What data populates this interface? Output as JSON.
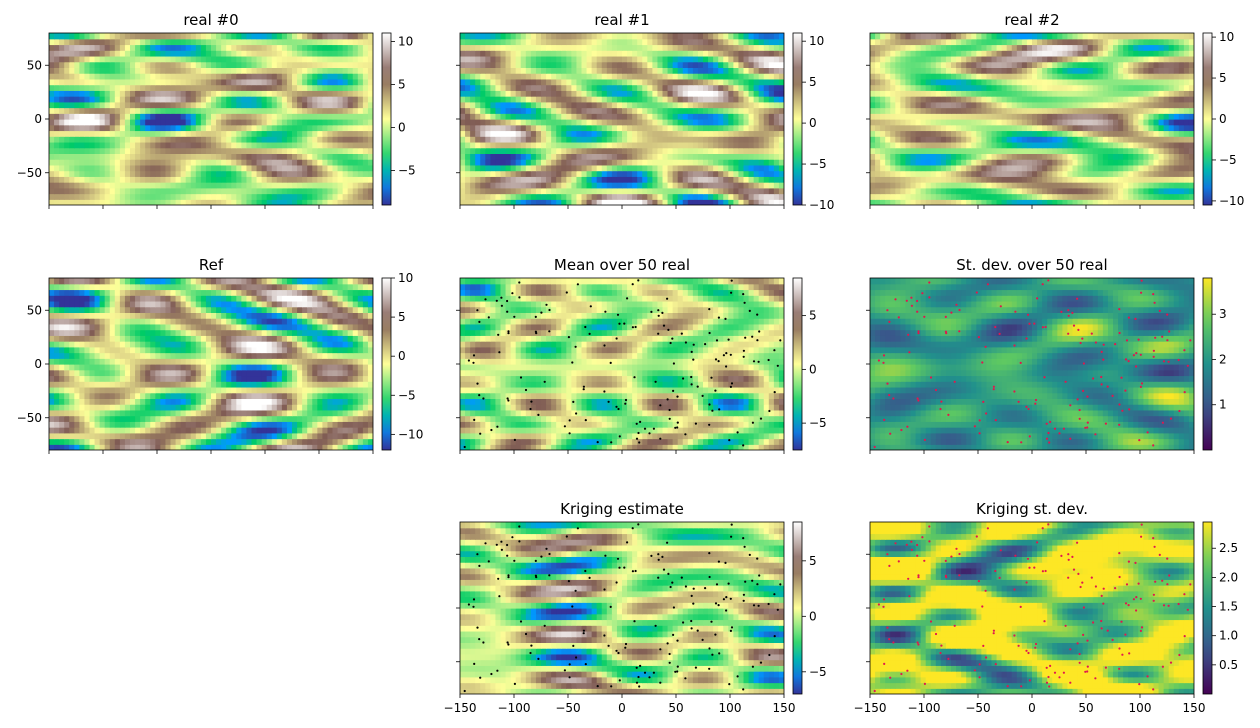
{
  "chart_data": [
    {
      "type": "heatmap",
      "title": "real #0",
      "colormap": "terrain",
      "xlim": [
        -150,
        150
      ],
      "ylim": [
        -80,
        80
      ],
      "yticks": [
        50,
        0,
        -50
      ],
      "ytick_labels": [
        "50",
        "0",
        "−50"
      ],
      "xticks": [
        -150,
        -100,
        -50,
        0,
        50,
        100,
        150
      ],
      "xtick_labels": [],
      "colorbar": {
        "min": -9,
        "max": 11,
        "ticks": [
          10,
          5,
          0,
          -5
        ],
        "tick_labels": [
          "10",
          "5",
          "0",
          "−5"
        ]
      },
      "points": []
    },
    {
      "type": "heatmap",
      "title": "real #1",
      "colormap": "terrain",
      "xlim": [
        -150,
        150
      ],
      "ylim": [
        -80,
        80
      ],
      "yticks": [
        50,
        0,
        -50
      ],
      "ytick_labels": [],
      "xticks": [
        -150,
        -100,
        -50,
        0,
        50,
        100,
        150
      ],
      "xtick_labels": [],
      "colorbar": {
        "min": -10,
        "max": 11,
        "ticks": [
          10,
          5,
          0,
          -5,
          -10
        ],
        "tick_labels": [
          "10",
          "5",
          "0",
          "−5",
          "−10"
        ]
      },
      "points": []
    },
    {
      "type": "heatmap",
      "title": "real #2",
      "colormap": "terrain",
      "xlim": [
        -150,
        150
      ],
      "ylim": [
        -80,
        80
      ],
      "yticks": [
        50,
        0,
        -50
      ],
      "ytick_labels": [],
      "xticks": [
        -150,
        -100,
        -50,
        0,
        50,
        100,
        150
      ],
      "xtick_labels": [],
      "colorbar": {
        "min": -10.5,
        "max": 10.5,
        "ticks": [
          10,
          5,
          0,
          -5,
          -10
        ],
        "tick_labels": [
          "10",
          "5",
          "0",
          "−5",
          "−10"
        ]
      },
      "points": []
    },
    {
      "type": "heatmap",
      "title": "Ref",
      "colormap": "terrain",
      "xlim": [
        -150,
        150
      ],
      "ylim": [
        -80,
        80
      ],
      "yticks": [
        50,
        0,
        -50
      ],
      "ytick_labels": [
        "50",
        "0",
        "−50"
      ],
      "xticks": [
        -150,
        -100,
        -50,
        0,
        50,
        100,
        150
      ],
      "xtick_labels": [],
      "colorbar": {
        "min": -12,
        "max": 10,
        "ticks": [
          10,
          5,
          0,
          -5,
          -10
        ],
        "tick_labels": [
          "10",
          "5",
          "0",
          "−5",
          "−10"
        ]
      },
      "points": []
    },
    {
      "type": "heatmap",
      "title": "Mean over 50 real",
      "colormap": "terrain",
      "xlim": [
        -150,
        150
      ],
      "ylim": [
        -80,
        80
      ],
      "yticks": [
        50,
        0,
        -50
      ],
      "ytick_labels": [],
      "xticks": [
        -150,
        -100,
        -50,
        0,
        50,
        100,
        150
      ],
      "xtick_labels": [],
      "colorbar": {
        "min": -7.5,
        "max": 8.5,
        "ticks": [
          5,
          0,
          -5
        ],
        "tick_labels": [
          "5",
          "0",
          "−5"
        ]
      },
      "points": [
        {
          "color": "#000000"
        }
      ]
    },
    {
      "type": "heatmap",
      "title": "St. dev. over 50 real",
      "colormap": "viridis",
      "xlim": [
        -150,
        150
      ],
      "ylim": [
        -80,
        80
      ],
      "yticks": [
        50,
        0,
        -50
      ],
      "ytick_labels": [],
      "xticks": [
        -150,
        -100,
        -50,
        0,
        50,
        100,
        150
      ],
      "xtick_labels": [],
      "colorbar": {
        "min": 0,
        "max": 3.8,
        "ticks": [
          3,
          2,
          1
        ],
        "tick_labels": [
          "3",
          "2",
          "1"
        ]
      },
      "points": [
        {
          "color": "#e0174f"
        }
      ]
    },
    {
      "type": "heatmap",
      "title": "Kriging estimate",
      "colormap": "terrain",
      "xlim": [
        -150,
        150
      ],
      "ylim": [
        -80,
        80
      ],
      "yticks": [
        50,
        0,
        -50
      ],
      "ytick_labels": [],
      "xticks": [
        -150,
        -100,
        -50,
        0,
        50,
        100,
        150
      ],
      "xtick_labels": [
        "−150",
        "−100",
        "−50",
        "0",
        "50",
        "100",
        "150"
      ],
      "colorbar": {
        "min": -7,
        "max": 8.5,
        "ticks": [
          5,
          0,
          -5
        ],
        "tick_labels": [
          "5",
          "0",
          "−5"
        ]
      },
      "points": [
        {
          "color": "#000000"
        }
      ]
    },
    {
      "type": "heatmap",
      "title": "Kriging st. dev.",
      "colormap": "viridis",
      "xlim": [
        -150,
        150
      ],
      "ylim": [
        -80,
        80
      ],
      "yticks": [
        50,
        0,
        -50
      ],
      "ytick_labels": [],
      "xticks": [
        -150,
        -100,
        -50,
        0,
        50,
        100,
        150
      ],
      "xtick_labels": [
        "−150",
        "−100",
        "−50",
        "0",
        "50",
        "100",
        "150"
      ],
      "colorbar": {
        "min": 0,
        "max": 2.95,
        "ticks": [
          2.5,
          2.0,
          1.5,
          1.0,
          0.5
        ],
        "tick_labels": [
          "2.5",
          "2.0",
          "1.5",
          "1.0",
          "0.5"
        ]
      },
      "points": [
        {
          "color": "#e0174f"
        }
      ]
    }
  ]
}
